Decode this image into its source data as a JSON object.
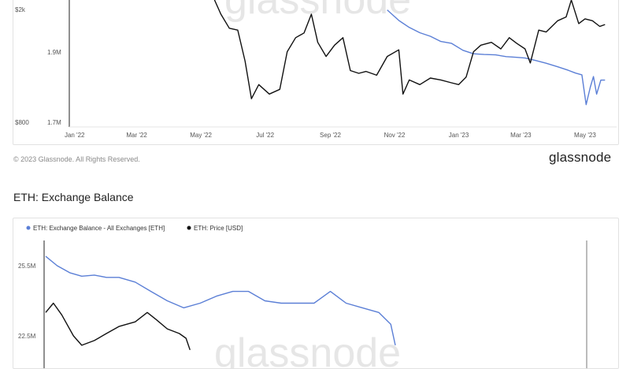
{
  "top_chart": {
    "watermark": "glassnode",
    "copyright": "© 2023 Glassnode. All Rights Reserved.",
    "brand": "glassnode",
    "colors": {
      "balance": "#5b7fd6",
      "price": "#111111"
    },
    "chart_data": {
      "type": "line",
      "x_tick_labels": [
        "Jan '22",
        "Mar '22",
        "May '22",
        "Jul '22",
        "Sep '22",
        "Nov '22",
        "Jan '23",
        "Mar '23",
        "May '23"
      ],
      "left_axis_ticks": [
        "$2k",
        "$800"
      ],
      "right_axis_ticks": [
        "1.9M",
        "1.7M"
      ],
      "series": [
        {
          "color": "#5b7fd6",
          "axis": "right",
          "points": [
            [
              "2022-10-25",
              2.02
            ],
            [
              "2022-11-05",
              1.99
            ],
            [
              "2022-11-15",
              1.97
            ],
            [
              "2022-11-25",
              1.955
            ],
            [
              "2022-12-05",
              1.945
            ],
            [
              "2022-12-15",
              1.93
            ],
            [
              "2022-12-25",
              1.925
            ],
            [
              "2023-01-05",
              1.905
            ],
            [
              "2023-01-15",
              1.895
            ],
            [
              "2023-01-25",
              1.893
            ],
            [
              "2023-02-05",
              1.892
            ],
            [
              "2023-02-15",
              1.887
            ],
            [
              "2023-02-25",
              1.885
            ],
            [
              "2023-03-05",
              1.883
            ],
            [
              "2023-03-15",
              1.876
            ],
            [
              "2023-03-25",
              1.868
            ],
            [
              "2023-04-05",
              1.858
            ],
            [
              "2023-04-15",
              1.848
            ],
            [
              "2023-04-22",
              1.84
            ],
            [
              "2023-04-28",
              1.835
            ],
            [
              "2023-05-02",
              1.75
            ],
            [
              "2023-05-06",
              1.8
            ],
            [
              "2023-05-09",
              1.83
            ],
            [
              "2023-05-12",
              1.78
            ],
            [
              "2023-05-16",
              1.82
            ],
            [
              "2023-05-20",
              1.82
            ]
          ]
        },
        {
          "color": "#111111",
          "axis": "left",
          "points": [
            [
              "2022-04-28",
              2800
            ],
            [
              "2022-05-05",
              2600
            ],
            [
              "2022-05-12",
              2150
            ],
            [
              "2022-05-20",
              1950
            ],
            [
              "2022-05-28",
              1800
            ],
            [
              "2022-06-05",
              1780
            ],
            [
              "2022-06-12",
              1450
            ],
            [
              "2022-06-18",
              1050
            ],
            [
              "2022-06-25",
              1200
            ],
            [
              "2022-07-05",
              1100
            ],
            [
              "2022-07-15",
              1150
            ],
            [
              "2022-07-22",
              1550
            ],
            [
              "2022-07-30",
              1700
            ],
            [
              "2022-08-07",
              1750
            ],
            [
              "2022-08-14",
              1950
            ],
            [
              "2022-08-20",
              1650
            ],
            [
              "2022-08-28",
              1500
            ],
            [
              "2022-09-05",
              1620
            ],
            [
              "2022-09-13",
              1700
            ],
            [
              "2022-09-20",
              1350
            ],
            [
              "2022-09-28",
              1320
            ],
            [
              "2022-10-05",
              1340
            ],
            [
              "2022-10-15",
              1300
            ],
            [
              "2022-10-25",
              1500
            ],
            [
              "2022-11-05",
              1570
            ],
            [
              "2022-11-09",
              1100
            ],
            [
              "2022-11-15",
              1250
            ],
            [
              "2022-11-25",
              1200
            ],
            [
              "2022-12-05",
              1270
            ],
            [
              "2022-12-15",
              1250
            ],
            [
              "2022-12-25",
              1220
            ],
            [
              "2023-01-01",
              1200
            ],
            [
              "2023-01-08",
              1280
            ],
            [
              "2023-01-15",
              1550
            ],
            [
              "2023-01-22",
              1620
            ],
            [
              "2023-02-01",
              1650
            ],
            [
              "2023-02-10",
              1580
            ],
            [
              "2023-02-18",
              1700
            ],
            [
              "2023-02-25",
              1640
            ],
            [
              "2023-03-05",
              1580
            ],
            [
              "2023-03-10",
              1430
            ],
            [
              "2023-03-18",
              1780
            ],
            [
              "2023-03-25",
              1760
            ],
            [
              "2023-04-05",
              1880
            ],
            [
              "2023-04-13",
              1920
            ],
            [
              "2023-04-18",
              2100
            ],
            [
              "2023-04-25",
              1850
            ],
            [
              "2023-05-01",
              1900
            ],
            [
              "2023-05-08",
              1880
            ],
            [
              "2023-05-15",
              1820
            ],
            [
              "2023-05-20",
              1840
            ]
          ]
        }
      ]
    }
  },
  "bottom_chart": {
    "section_title": "ETH: Exchange Balance",
    "watermark": "glassnode",
    "legend": [
      {
        "label": "ETH: Exchange Balance - All Exchanges [ETH]",
        "color": "#5b7fd6"
      },
      {
        "label": "ETH: Price [USD]",
        "color": "#111111"
      }
    ],
    "chart_data": {
      "type": "line",
      "right_axis_ticks": [
        "25.5M",
        "22.5M"
      ],
      "series": [
        {
          "name": "ETH: Exchange Balance - All Exchanges [ETH]",
          "color": "#5b7fd6",
          "axis": "left",
          "points": [
            [
              "2016-02-01",
              25.9
            ],
            [
              "2016-03-15",
              25.5
            ],
            [
              "2016-05-01",
              25.2
            ],
            [
              "2016-06-15",
              25.05
            ],
            [
              "2016-08-01",
              25.1
            ],
            [
              "2016-09-15",
              25.0
            ],
            [
              "2016-11-01",
              25.0
            ],
            [
              "2017-01-01",
              24.8
            ],
            [
              "2017-03-01",
              24.4
            ],
            [
              "2017-05-01",
              24.0
            ],
            [
              "2017-07-01",
              23.7
            ],
            [
              "2017-09-01",
              23.9
            ],
            [
              "2017-11-01",
              24.2
            ],
            [
              "2018-01-01",
              24.4
            ],
            [
              "2018-03-01",
              24.4
            ],
            [
              "2018-05-01",
              24.0
            ],
            [
              "2018-07-01",
              23.9
            ],
            [
              "2018-09-01",
              23.9
            ],
            [
              "2018-11-01",
              23.9
            ],
            [
              "2019-01-01",
              24.4
            ],
            [
              "2019-03-01",
              23.9
            ],
            [
              "2019-05-01",
              23.7
            ],
            [
              "2019-07-01",
              23.5
            ],
            [
              "2019-08-15",
              23.0
            ],
            [
              "2019-09-01",
              22.1
            ]
          ]
        },
        {
          "name": "ETH: Price [USD]",
          "color": "#111111",
          "axis": "right",
          "points": [
            [
              "2016-02-01",
              23.5
            ],
            [
              "2016-03-01",
              23.9
            ],
            [
              "2016-04-01",
              23.4
            ],
            [
              "2016-05-15",
              22.5
            ],
            [
              "2016-06-15",
              22.1
            ],
            [
              "2016-08-01",
              22.3
            ],
            [
              "2016-09-15",
              22.6
            ],
            [
              "2016-11-01",
              22.9
            ],
            [
              "2017-01-01",
              23.1
            ],
            [
              "2017-02-15",
              23.5
            ],
            [
              "2017-03-20",
              23.2
            ],
            [
              "2017-05-01",
              22.8
            ],
            [
              "2017-06-15",
              22.6
            ],
            [
              "2017-07-10",
              22.4
            ],
            [
              "2017-07-25",
              21.9
            ]
          ]
        }
      ]
    }
  }
}
